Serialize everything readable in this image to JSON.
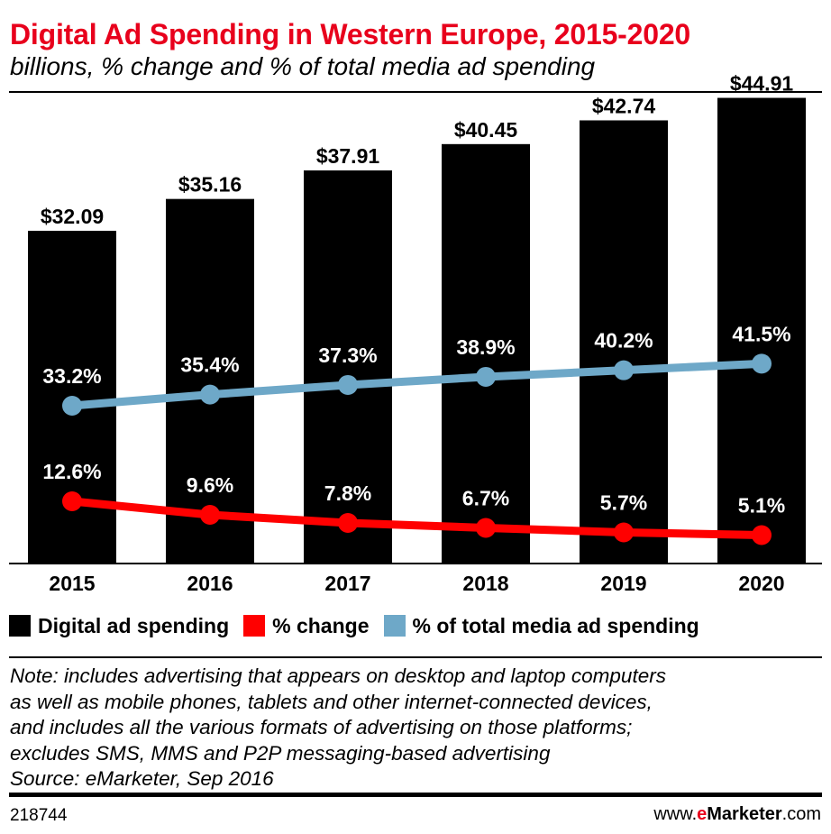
{
  "header": {
    "title": "Digital Ad Spending in Western Europe, 2015-2020",
    "subtitle": "billions, % change and % of total media ad spending"
  },
  "chart_data": {
    "type": "bar",
    "categories": [
      "2015",
      "2016",
      "2017",
      "2018",
      "2019",
      "2020"
    ],
    "series": [
      {
        "name": "Digital ad spending",
        "type": "bar",
        "values": [
          32.09,
          35.16,
          37.91,
          40.45,
          42.74,
          44.91
        ],
        "labels": [
          "$32.09",
          "$35.16",
          "$37.91",
          "$40.45",
          "$42.74",
          "$44.91"
        ],
        "color": "#000000"
      },
      {
        "name": "% change",
        "type": "line",
        "values": [
          12.6,
          9.6,
          7.8,
          6.7,
          5.7,
          5.1
        ],
        "labels": [
          "12.6%",
          "9.6%",
          "7.8%",
          "6.7%",
          "5.7%",
          "5.1%"
        ],
        "color": "#ff0000"
      },
      {
        "name": "% of total media ad spending",
        "type": "line",
        "values": [
          33.2,
          35.4,
          37.3,
          38.9,
          40.2,
          41.5
        ],
        "labels": [
          "33.2%",
          "35.4%",
          "37.3%",
          "38.9%",
          "40.2%",
          "41.5%"
        ],
        "color": "#6ea8c8"
      }
    ],
    "grid": false,
    "legend_position": "bottom"
  },
  "legend": [
    {
      "label": "Digital ad spending",
      "color": "#000000"
    },
    {
      "label": "% change",
      "color": "#ff0000"
    },
    {
      "label": "% of total media ad spending",
      "color": "#6ea8c8"
    }
  ],
  "note": {
    "lines": [
      "Note: includes advertising that appears on desktop and laptop computers",
      "as well as mobile phones, tablets and other internet-connected devices,",
      "and includes all the various formats of advertising on those platforms;",
      "excludes SMS, MMS and P2P messaging-based advertising",
      "Source: eMarketer, Sep 2016"
    ]
  },
  "footer": {
    "id": "218744",
    "brand_prefix": "www.",
    "brand_e": "e",
    "brand_main": "Marketer",
    "brand_suffix": ".com"
  }
}
